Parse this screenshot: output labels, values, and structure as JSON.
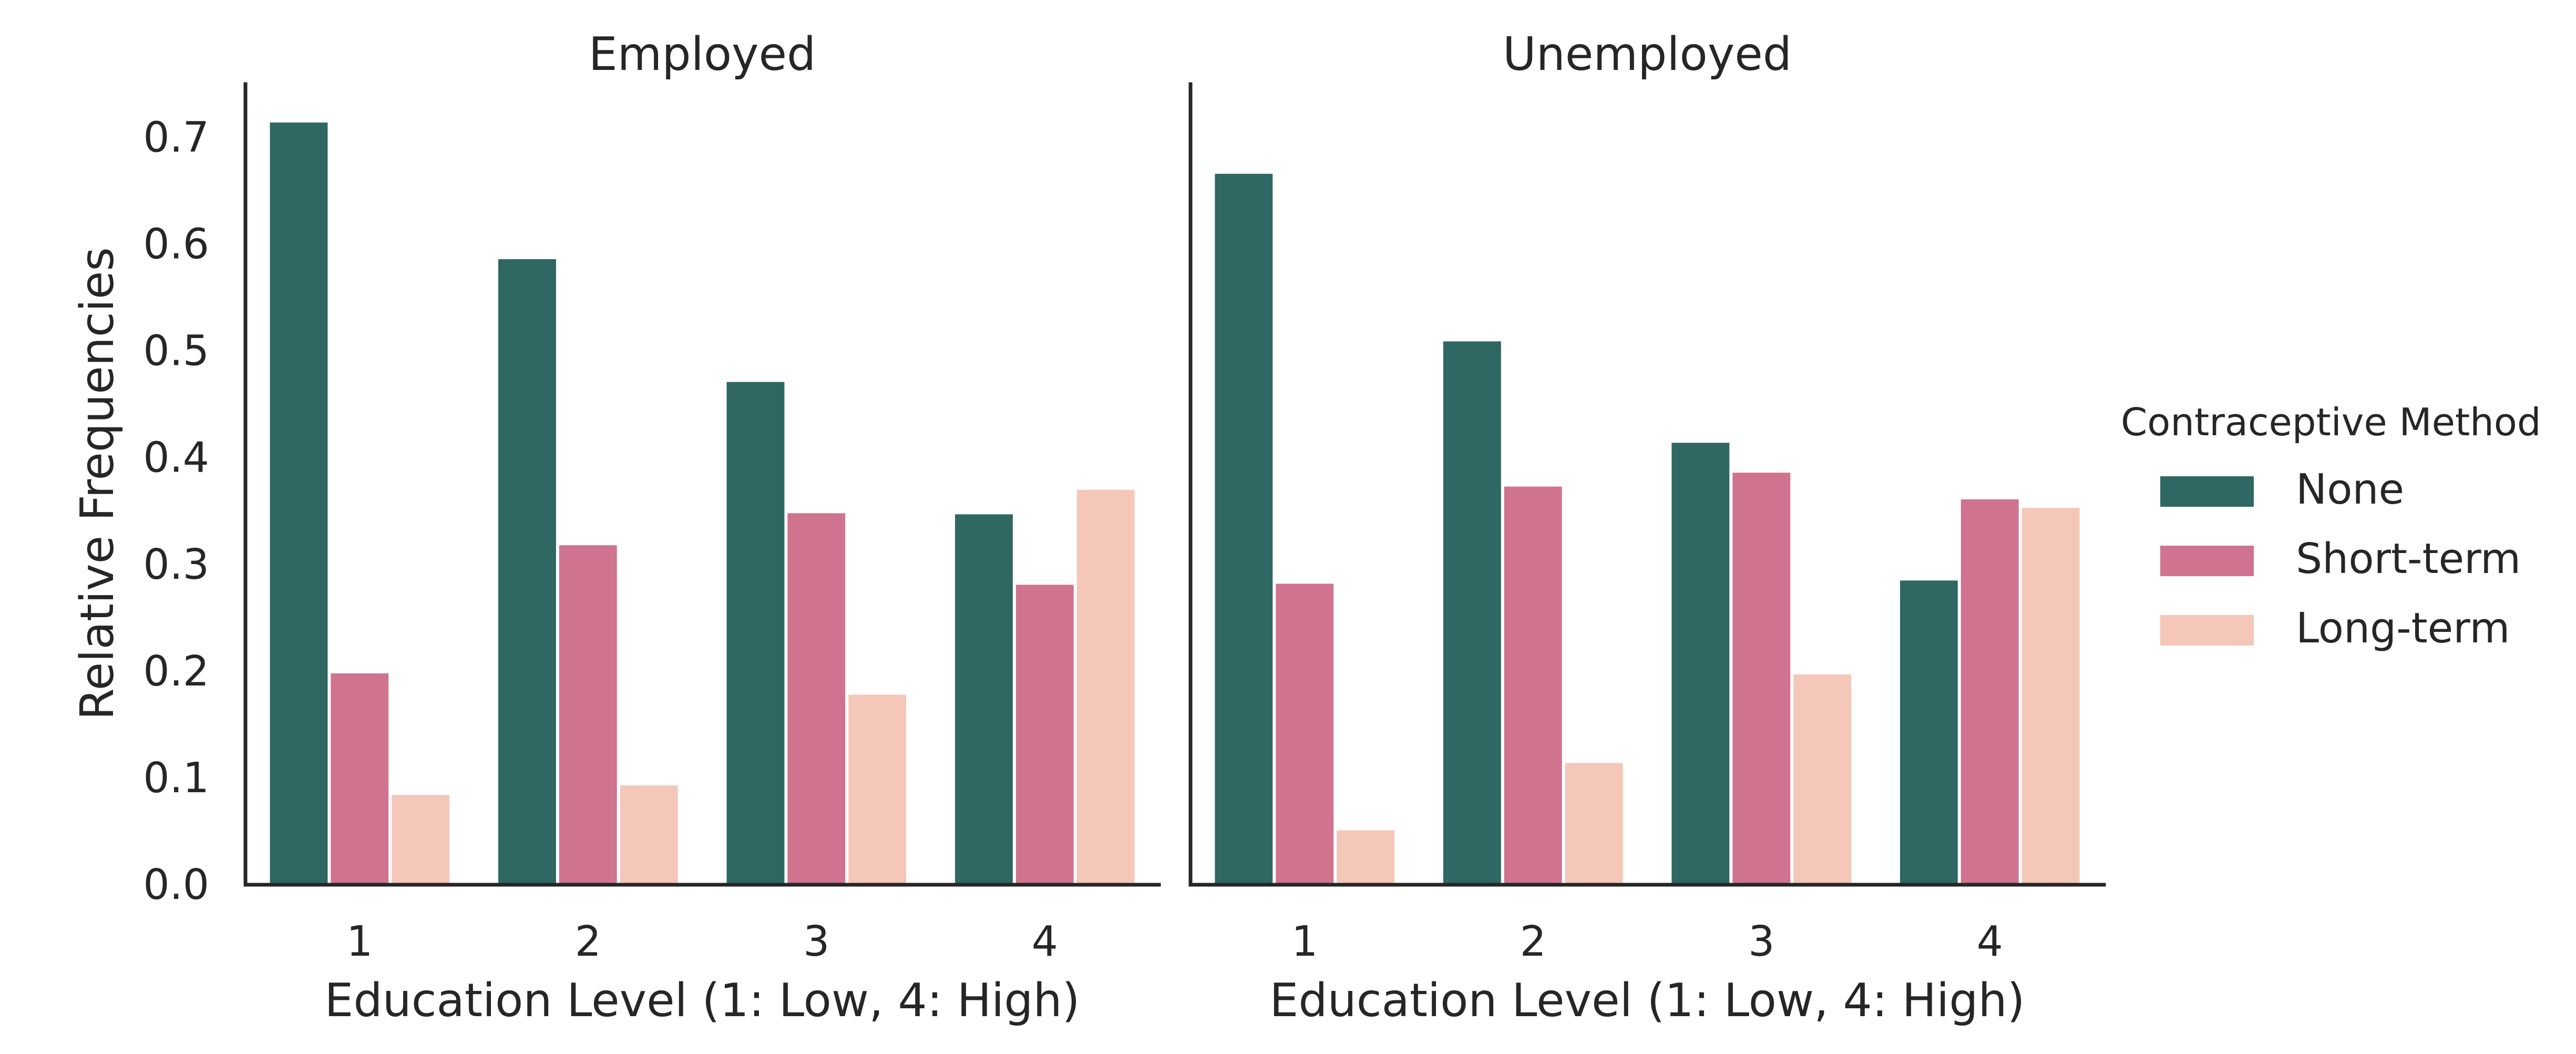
{
  "chart_data": {
    "type": "bar",
    "ylabel": "Relative Frequencies",
    "ylim": [
      0,
      0.75
    ],
    "yticks": [
      "0.0",
      "0.1",
      "0.2",
      "0.3",
      "0.4",
      "0.5",
      "0.6",
      "0.7"
    ],
    "legend": {
      "title": "Contraceptive Method",
      "placement": "right"
    },
    "grid": false,
    "facets": [
      {
        "title": "Employed",
        "xlabel": "Education Level (1: Low, 4: High)",
        "categories": [
          "1",
          "2",
          "3",
          "4"
        ],
        "series": [
          {
            "name": "None",
            "color": "#2f6862",
            "values": [
              0.714,
              0.586,
              0.471,
              0.347
            ]
          },
          {
            "name": "Short-term",
            "color": "#d0738f",
            "values": [
              0.198,
              0.318,
              0.348,
              0.281
            ]
          },
          {
            "name": "Long-term",
            "color": "#f5c7b8",
            "values": [
              0.084,
              0.093,
              0.178,
              0.37
            ]
          }
        ]
      },
      {
        "title": "Unemployed",
        "xlabel": "Education Level (1: Low, 4: High)",
        "categories": [
          "1",
          "2",
          "3",
          "4"
        ],
        "series": [
          {
            "name": "None",
            "color": "#2f6862",
            "values": [
              0.666,
              0.509,
              0.414,
              0.285
            ]
          },
          {
            "name": "Short-term",
            "color": "#d0738f",
            "values": [
              0.282,
              0.373,
              0.386,
              0.361
            ]
          },
          {
            "name": "Long-term",
            "color": "#f5c7b8",
            "values": [
              0.051,
              0.114,
              0.197,
              0.353
            ]
          }
        ]
      }
    ]
  }
}
